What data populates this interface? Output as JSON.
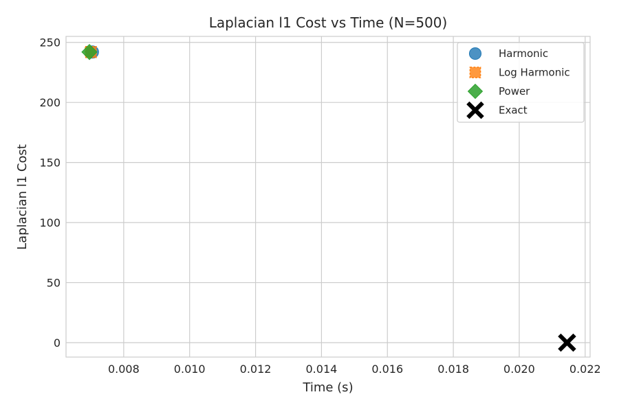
{
  "chart_data": {
    "type": "scatter",
    "title": "Laplacian l1 Cost vs Time (N=500)",
    "xlabel": "Time (s)",
    "ylabel": "Laplacian l1 Cost",
    "xlim": [
      0.00625,
      0.02215
    ],
    "ylim": [
      -12,
      255
    ],
    "xticks": [
      0.008,
      0.01,
      0.012,
      0.014,
      0.016,
      0.018,
      0.02,
      0.022
    ],
    "xtick_labels": [
      "0.008",
      "0.010",
      "0.012",
      "0.014",
      "0.016",
      "0.018",
      "0.020",
      "0.022"
    ],
    "yticks": [
      0,
      50,
      100,
      150,
      200,
      250
    ],
    "ytick_labels": [
      "0",
      "50",
      "100",
      "150",
      "200",
      "250"
    ],
    "grid": true,
    "legend_position": "top-right",
    "series": [
      {
        "name": "Harmonic",
        "marker": "circle",
        "color": "#1f77b4",
        "points": [
          {
            "x": 0.00705,
            "y": 242
          }
        ]
      },
      {
        "name": "Log Harmonic",
        "marker": "square",
        "color": "#ff7f0e",
        "points": [
          {
            "x": 0.007,
            "y": 242
          }
        ]
      },
      {
        "name": "Power",
        "marker": "diamond",
        "color": "#2ca02c",
        "points": [
          {
            "x": 0.00696,
            "y": 242
          }
        ]
      },
      {
        "name": "Exact",
        "marker": "x",
        "color": "#000000",
        "points": [
          {
            "x": 0.02145,
            "y": 0
          }
        ]
      }
    ]
  }
}
